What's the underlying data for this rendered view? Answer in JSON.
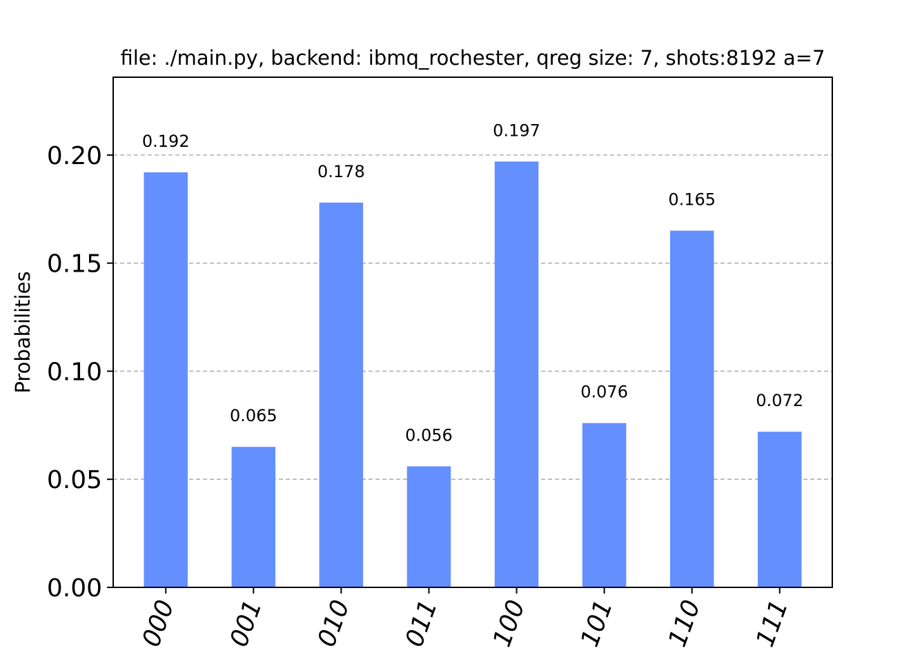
{
  "chart_data": {
    "type": "bar",
    "title": "file: ./main.py, backend: ibmq_rochester, qreg size: 7, shots:8192 a=7",
    "xlabel": "",
    "ylabel": "Probabilities",
    "categories": [
      "000",
      "001",
      "010",
      "011",
      "100",
      "101",
      "110",
      "111"
    ],
    "values": [
      0.192,
      0.065,
      0.178,
      0.056,
      0.197,
      0.076,
      0.165,
      0.072
    ],
    "value_labels": [
      "0.192",
      "0.065",
      "0.178",
      "0.056",
      "0.197",
      "0.076",
      "0.165",
      "0.072"
    ],
    "yticks": [
      0.0,
      0.05,
      0.1,
      0.15,
      0.2
    ],
    "ytick_labels": [
      "0.00",
      "0.05",
      "0.10",
      "0.15",
      "0.20"
    ],
    "ylim": [
      0,
      0.236
    ],
    "grid": "horizontal dashed",
    "bar_color": "#648fff",
    "grid_color": "#b0b0b0"
  }
}
